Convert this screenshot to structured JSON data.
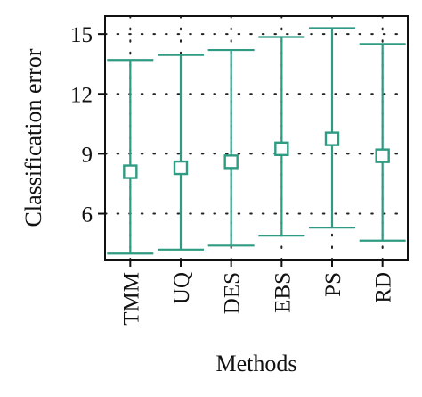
{
  "chart_data": {
    "type": "errorbar",
    "xlabel": "Methods",
    "ylabel": "Classification error",
    "categories": [
      "TMM",
      "UQ",
      "DES",
      "EBS",
      "PS",
      "RD"
    ],
    "series": [
      {
        "mean": [
          8.1,
          8.3,
          8.6,
          9.25,
          9.75,
          8.9
        ],
        "lower": [
          4.0,
          4.2,
          4.4,
          4.9,
          5.3,
          4.65
        ],
        "upper": [
          13.7,
          13.95,
          14.2,
          14.85,
          15.3,
          14.5
        ]
      }
    ],
    "yticks": [
      6,
      9,
      12,
      15
    ],
    "ylim": [
      3.7,
      15.9
    ],
    "grid": "dotted",
    "colors": {
      "series": "#2e9b82",
      "grid": "#222222",
      "axis": "#111111"
    }
  }
}
